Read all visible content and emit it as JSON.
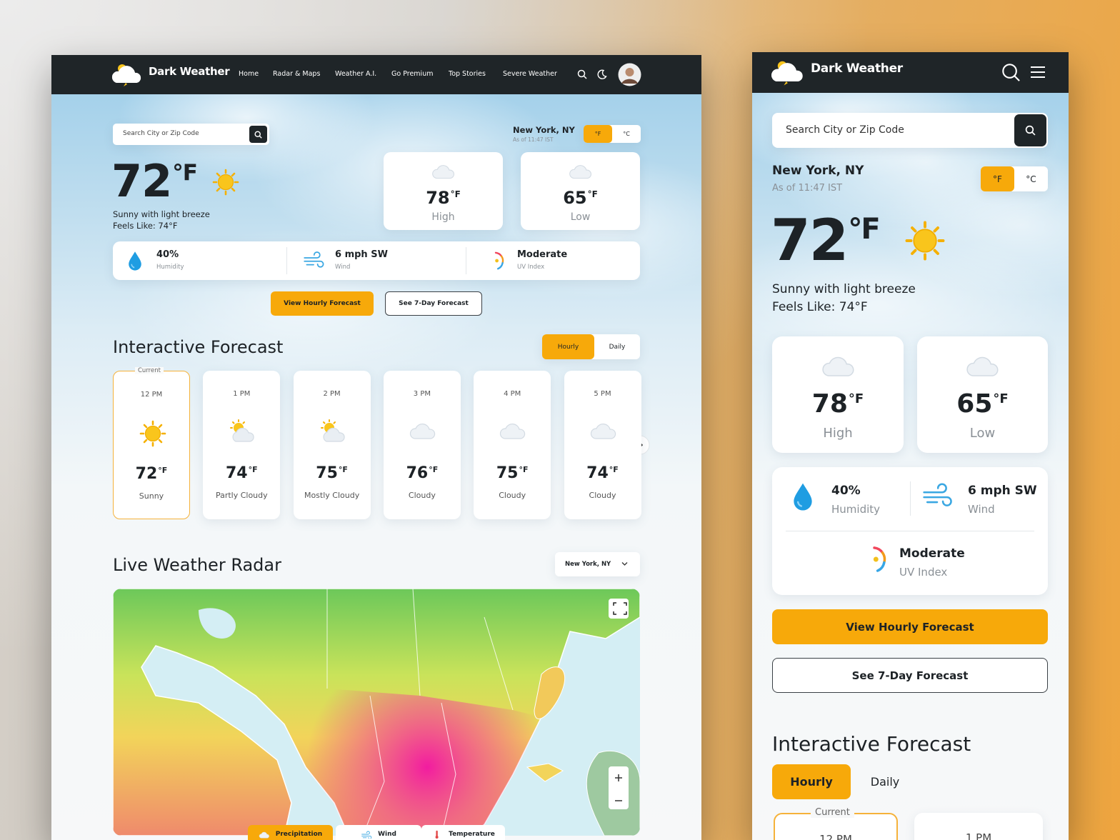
{
  "header": {
    "brand": "Dark Weather",
    "nav": [
      "Home",
      "Radar & Maps",
      "Weather A.I.",
      "Go Premium",
      "Top Stories",
      "Severe Weather"
    ]
  },
  "search": {
    "placeholder": "Search City or Zip Code"
  },
  "location": {
    "city": "New York, NY",
    "updated": "As of 11:47 IST"
  },
  "units": [
    "°F",
    "°C"
  ],
  "current": {
    "temp": 72,
    "description": "Sunny with light breeze",
    "feels_like": "Feels Like: 74°F"
  },
  "high": {
    "temp": 78,
    "label": "High"
  },
  "low": {
    "temp": 65,
    "label": "Low"
  },
  "stats": [
    {
      "value": "40%",
      "label": "Humidity",
      "icon": "drop"
    },
    {
      "value": "6 mph SW",
      "label": "Wind",
      "icon": "wind"
    },
    {
      "value": "Moderate",
      "label": "UV Index",
      "icon": "uv"
    }
  ],
  "buttons": {
    "hourly": "View Hourly Forecast",
    "weekly": "See 7-Day Forecast"
  },
  "forecast": {
    "title": "Interactive Forecast",
    "tabs": [
      "Hourly",
      "Daily"
    ],
    "current_label": "Current",
    "hours": [
      {
        "time": "12 PM",
        "temp": 72,
        "condition": "Sunny",
        "icon": "sun"
      },
      {
        "time": "1 PM",
        "temp": 74,
        "condition": "Partly Cloudy",
        "icon": "partly"
      },
      {
        "time": "2 PM",
        "temp": 75,
        "condition": "Mostly Cloudy",
        "icon": "partly"
      },
      {
        "time": "3 PM",
        "temp": 76,
        "condition": "Cloudy",
        "icon": "cloud"
      },
      {
        "time": "4 PM",
        "temp": 75,
        "condition": "Cloudy",
        "icon": "cloud"
      },
      {
        "time": "5 PM",
        "temp": 74,
        "condition": "Cloudy",
        "icon": "cloud"
      }
    ]
  },
  "radar": {
    "title": "Live Weather Radar",
    "location": "New York, NY",
    "layers": [
      "Precipitation",
      "Wind",
      "Temperature"
    ]
  }
}
